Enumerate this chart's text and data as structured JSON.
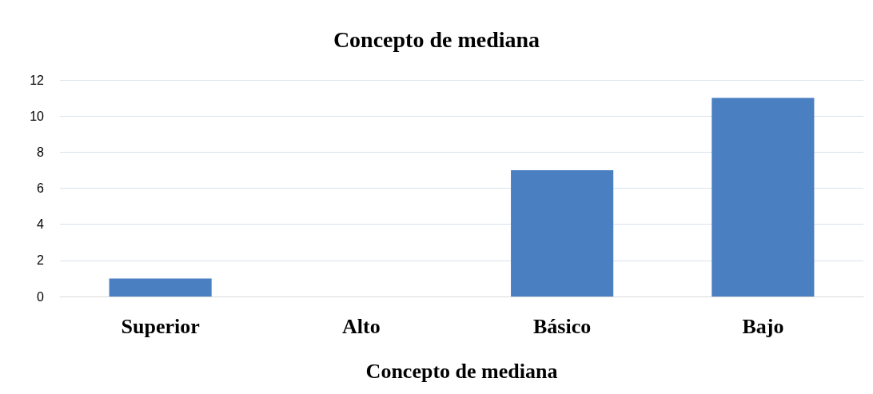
{
  "chart_data": {
    "type": "bar",
    "title": "Concepto de mediana",
    "xlabel": "Concepto de mediana",
    "categories": [
      "Superior",
      "Alto",
      "Básico",
      "Bajo"
    ],
    "values": [
      1,
      0,
      7,
      11
    ],
    "color": "#4a7fc1",
    "ylim": [
      0,
      12
    ],
    "yticks": [
      0,
      2,
      4,
      6,
      8,
      10,
      12
    ],
    "grid": "y"
  }
}
